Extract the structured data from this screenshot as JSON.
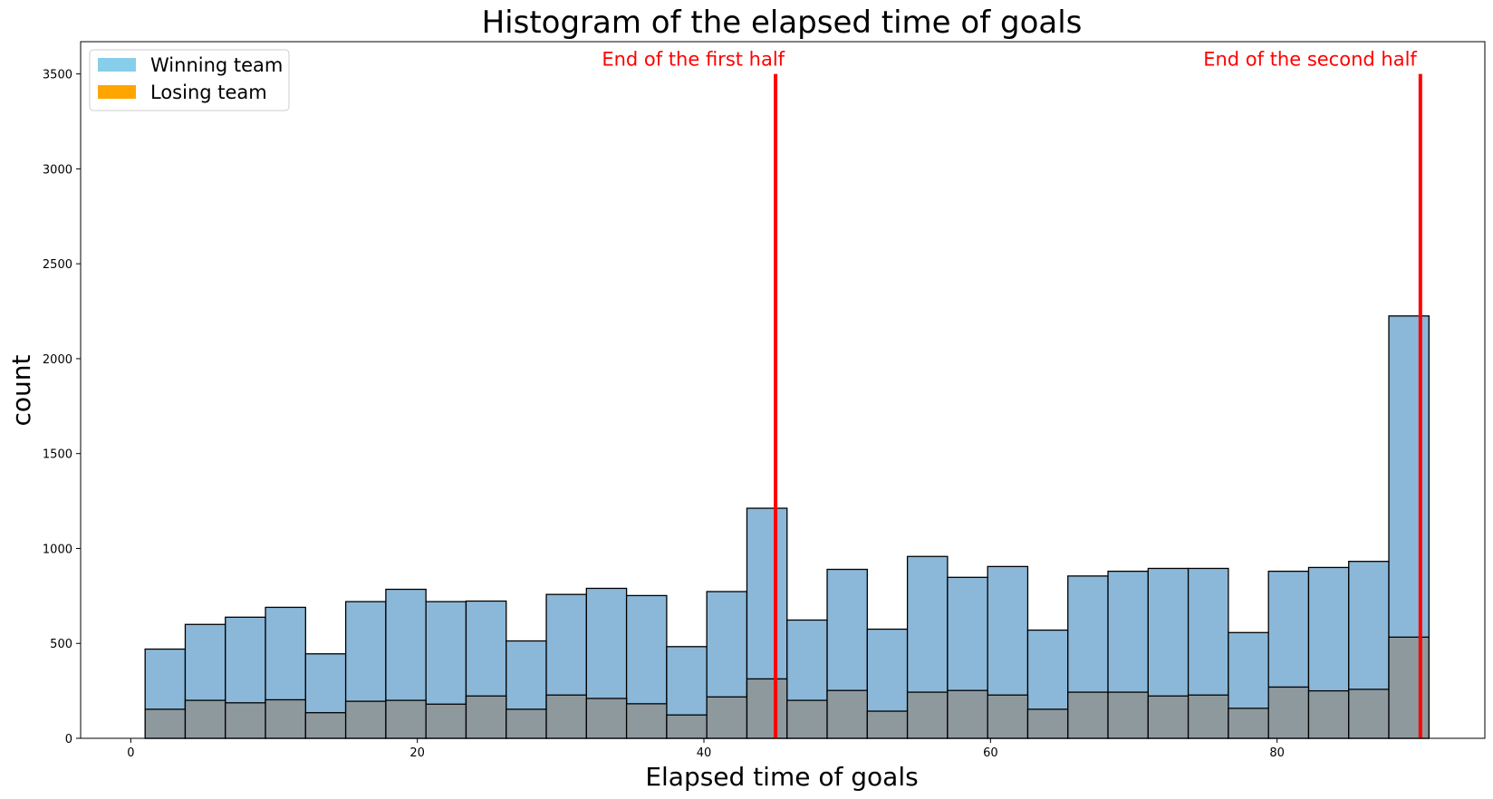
{
  "chart_data": {
    "type": "bar",
    "title": "Histogram of the elapsed time of goals",
    "xlabel": "Elapsed time of goals",
    "ylabel": "count",
    "xlim": [
      -3.5,
      94.5
    ],
    "ylim": [
      0,
      3670
    ],
    "xticks": [
      0,
      20,
      40,
      60,
      80
    ],
    "yticks": [
      0,
      500,
      1000,
      1500,
      2000,
      2500,
      3000,
      3500
    ],
    "bin_edges": [
      1,
      3.8,
      6.6,
      9.4,
      12.2,
      15,
      17.8,
      20.6,
      23.4,
      26.2,
      29,
      31.8,
      34.6,
      37.4,
      40.2,
      43,
      45.8,
      48.6,
      51.4,
      54.2,
      57,
      59.8,
      62.6,
      65.4,
      68.2,
      71,
      73.8,
      76.6,
      79.4,
      82.2,
      85,
      87.8,
      90.6
    ],
    "series": [
      {
        "name": "Winning team",
        "color": "#87ceeb",
        "values": [
          470,
          600,
          638,
          690,
          445,
          720,
          785,
          720,
          723,
          513,
          758,
          790,
          752,
          483,
          773,
          1212,
          623,
          890,
          575,
          958,
          848,
          905,
          570,
          855,
          880,
          895,
          895,
          557,
          880,
          900,
          932,
          2225
        ]
      },
      {
        "name": "Losing team",
        "color": "#ffa500",
        "values": [
          153,
          200,
          187,
          203,
          135,
          195,
          200,
          180,
          223,
          153,
          228,
          210,
          182,
          123,
          218,
          313,
          200,
          252,
          143,
          243,
          252,
          228,
          153,
          243,
          243,
          223,
          228,
          158,
          270,
          250,
          258,
          533
        ]
      }
    ],
    "annotations": [
      {
        "x": 45,
        "label": "End of the first half",
        "color": "#ff0000"
      },
      {
        "x": 90,
        "label": "End of the second half",
        "color": "#ff0000"
      }
    ],
    "grid": false,
    "legend_position": "top-left"
  }
}
